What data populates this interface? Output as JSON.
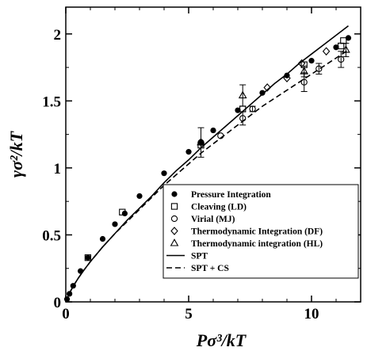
{
  "chart_data": {
    "type": "scatter",
    "xlabel": "Pσ³/kT",
    "ylabel": "γσ²/kT",
    "xlim": [
      0,
      12
    ],
    "ylim": [
      0,
      2.2
    ],
    "xticks": [
      0,
      5,
      10
    ],
    "yticks": [
      0,
      0.5,
      1,
      1.5,
      2
    ],
    "xtick_labels": [
      "0",
      "5",
      "10"
    ],
    "ytick_labels": [
      "0",
      "0.5",
      "1",
      "1.5",
      "2"
    ],
    "legend_position": "lower-right",
    "series": [
      {
        "name": "Pressure Integration",
        "marker": "filled-circle",
        "points": [
          [
            0.05,
            0.02
          ],
          [
            0.15,
            0.06
          ],
          [
            0.3,
            0.12
          ],
          [
            0.6,
            0.23
          ],
          [
            0.9,
            0.33
          ],
          [
            1.5,
            0.47
          ],
          [
            2.0,
            0.58
          ],
          [
            2.4,
            0.66
          ],
          [
            3.0,
            0.79
          ],
          [
            4.0,
            0.96
          ],
          [
            5.0,
            1.12
          ],
          [
            5.5,
            1.19
          ],
          [
            6.0,
            1.28
          ],
          [
            7.0,
            1.43
          ],
          [
            8.0,
            1.56
          ],
          [
            9.0,
            1.69
          ],
          [
            10.0,
            1.8
          ],
          [
            11.0,
            1.9
          ],
          [
            11.5,
            1.97
          ]
        ]
      },
      {
        "name": "Cleaving (LD)",
        "marker": "open-square",
        "points": [
          [
            0.9,
            0.33
          ],
          [
            2.3,
            0.67
          ],
          [
            5.5,
            1.17
          ],
          [
            7.2,
            1.44
          ],
          [
            9.7,
            1.77
          ],
          [
            11.2,
            1.91
          ],
          [
            11.3,
            1.95
          ]
        ]
      },
      {
        "name": "Virial (MJ)",
        "marker": "open-circle",
        "points": [
          [
            5.5,
            1.19
          ],
          [
            6.3,
            1.24
          ],
          [
            7.2,
            1.37
          ],
          [
            7.6,
            1.44
          ],
          [
            9.7,
            1.64
          ],
          [
            10.3,
            1.74
          ],
          [
            11.2,
            1.81
          ]
        ],
        "errors": [
          0,
          0,
          0.05,
          0.02,
          0.07,
          0.04,
          0.06
        ]
      },
      {
        "name": "Thermodynamic Integration (DF)",
        "marker": "open-diamond",
        "points": [
          [
            8.2,
            1.6
          ],
          [
            9.0,
            1.67
          ],
          [
            9.6,
            1.78
          ],
          [
            10.6,
            1.87
          ]
        ]
      },
      {
        "name": "Thermodynamic integration (HL)",
        "marker": "open-triangle",
        "points": [
          [
            5.5,
            1.19
          ],
          [
            7.2,
            1.54
          ],
          [
            9.7,
            1.72
          ],
          [
            11.4,
            1.88
          ]
        ],
        "errors": [
          0.11,
          0.08,
          0.04,
          0.05
        ]
      },
      {
        "name": "SPT",
        "style": "solid-line",
        "x": [
          0,
          0.05,
          0.1,
          0.2,
          0.3,
          0.5,
          0.75,
          1,
          1.5,
          2,
          2.5,
          3,
          3.5,
          4,
          4.5,
          5,
          5.5,
          6,
          6.5,
          7,
          7.5,
          8,
          8.5,
          9,
          9.5,
          10,
          10.5,
          11,
          11.5
        ],
        "y": [
          0,
          0.025,
          0.045,
          0.082,
          0.116,
          0.175,
          0.24,
          0.3,
          0.41,
          0.51,
          0.61,
          0.7,
          0.79,
          0.89,
          0.98,
          1.06,
          1.15,
          1.23,
          1.31,
          1.39,
          1.47,
          1.55,
          1.63,
          1.7,
          1.78,
          1.85,
          1.92,
          1.99,
          2.06
        ]
      },
      {
        "name": "SPT + CS",
        "style": "dashed-line",
        "x": [
          0,
          0.05,
          0.1,
          0.2,
          0.3,
          0.5,
          0.75,
          1,
          1.5,
          2,
          2.5,
          3,
          3.5,
          4,
          4.5,
          5,
          5.5,
          6,
          6.5,
          7,
          7.5,
          8,
          8.5,
          9,
          9.5,
          10,
          10.5,
          11,
          11.5
        ],
        "y": [
          0,
          0.025,
          0.045,
          0.082,
          0.116,
          0.175,
          0.24,
          0.3,
          0.41,
          0.51,
          0.6,
          0.69,
          0.78,
          0.87,
          0.95,
          1.03,
          1.11,
          1.18,
          1.25,
          1.32,
          1.39,
          1.46,
          1.52,
          1.58,
          1.64,
          1.7,
          1.76,
          1.82,
          1.88
        ]
      }
    ]
  }
}
